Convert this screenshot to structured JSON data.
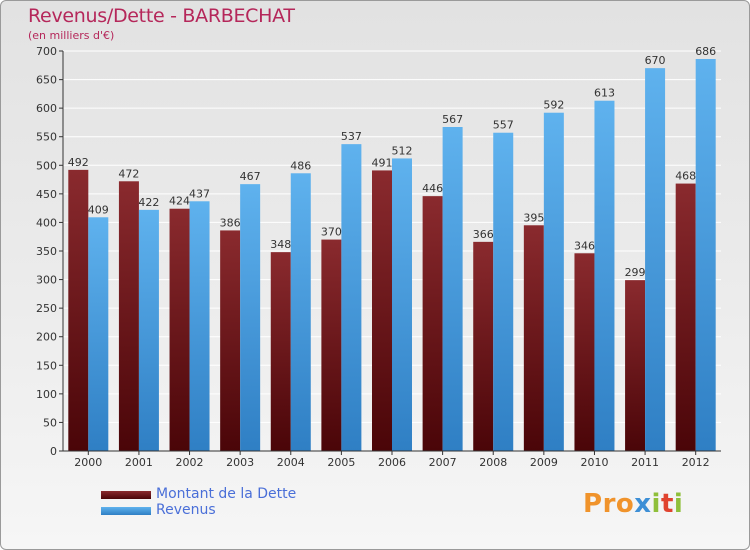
{
  "title": "Revenus/Dette - BARBECHAT",
  "subtitle": "(en milliers d'€)",
  "logo_text": "Proxiti",
  "chart_data": {
    "type": "bar",
    "title": "Revenus/Dette - BARBECHAT",
    "subtitle": "(en milliers d'€)",
    "xlabel": "",
    "ylabel": "",
    "ylim": [
      0,
      700
    ],
    "yticks": [
      0,
      50,
      100,
      150,
      200,
      250,
      300,
      350,
      400,
      450,
      500,
      550,
      600,
      650,
      700
    ],
    "grid": true,
    "legend_position": "bottom-left",
    "categories": [
      "2000",
      "2001",
      "2002",
      "2003",
      "2004",
      "2005",
      "2006",
      "2007",
      "2008",
      "2009",
      "2010",
      "2011",
      "2012"
    ],
    "series": [
      {
        "name": "Montant de la Dette",
        "color": "#7a1a1f",
        "values": [
          492,
          472,
          424,
          386,
          348,
          370,
          491,
          446,
          366,
          395,
          346,
          299,
          468
        ]
      },
      {
        "name": "Revenus",
        "color": "#4fa3e4",
        "values": [
          409,
          422,
          437,
          467,
          486,
          537,
          512,
          567,
          557,
          592,
          613,
          670,
          686
        ]
      }
    ]
  }
}
